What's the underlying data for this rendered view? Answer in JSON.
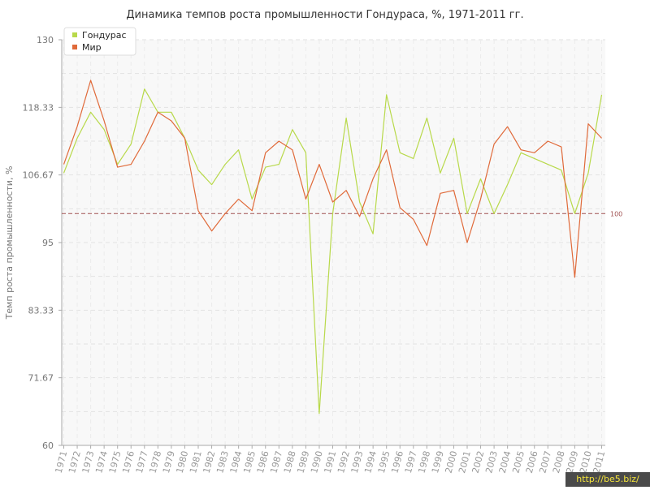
{
  "chart_data": {
    "type": "line",
    "title": "Динамика темпов роста промышленности Гондураса, %, 1971-2011 гг.",
    "ylabel": "Темп роста промышленности, %",
    "xlabel": "",
    "ylim": [
      60,
      130
    ],
    "yticks": [
      "60",
      "71.67",
      "83.33",
      "95",
      "106.67",
      "118.33",
      "130"
    ],
    "ytick_values": [
      60,
      71.67,
      83.33,
      95,
      106.67,
      118.33,
      130
    ],
    "categories": [
      "1971",
      "1972",
      "1973",
      "1974",
      "1975",
      "1976",
      "1977",
      "1978",
      "1979",
      "1980",
      "1981",
      "1982",
      "1983",
      "1984",
      "1985",
      "1986",
      "1987",
      "1988",
      "1989",
      "1990",
      "1991",
      "1992",
      "1993",
      "1994",
      "1995",
      "1996",
      "1997",
      "1998",
      "1999",
      "2000",
      "2001",
      "2002",
      "2003",
      "2004",
      "2005",
      "2006",
      "2007",
      "2008",
      "2009",
      "2010",
      "2011"
    ],
    "series": [
      {
        "name": "Гондурас",
        "color": "#b8d94a",
        "values": [
          107,
          113,
          117.5,
          114.5,
          108.5,
          112,
          121.5,
          117.5,
          117.5,
          113,
          107.5,
          105,
          108.5,
          111,
          102.5,
          108,
          108.5,
          114.5,
          110.5,
          65.5,
          100,
          116.5,
          102,
          96.5,
          120.5,
          110.5,
          109.5,
          116.5,
          107,
          113,
          100,
          106,
          100,
          105,
          110.5,
          109.5,
          108.5,
          107.5,
          100,
          107,
          120.5
        ]
      },
      {
        "name": "Мир",
        "color": "#e06a3a",
        "values": [
          108.5,
          115,
          123,
          116,
          108,
          108.5,
          112.5,
          117.5,
          116,
          113,
          100.5,
          97,
          100,
          102.5,
          100.5,
          110.5,
          112.5,
          111,
          102.5,
          108.5,
          102,
          104,
          99.5,
          106,
          111,
          101,
          99,
          94.5,
          103.5,
          104,
          95,
          102.5,
          112,
          115,
          111,
          110.5,
          112.5,
          111.5,
          89,
          115.5,
          113
        ]
      }
    ],
    "reference_line": {
      "value": 100,
      "label": "100",
      "color": "#a05050"
    },
    "legend_position": "top-left",
    "grid": true
  },
  "watermark": "http://be5.biz/"
}
